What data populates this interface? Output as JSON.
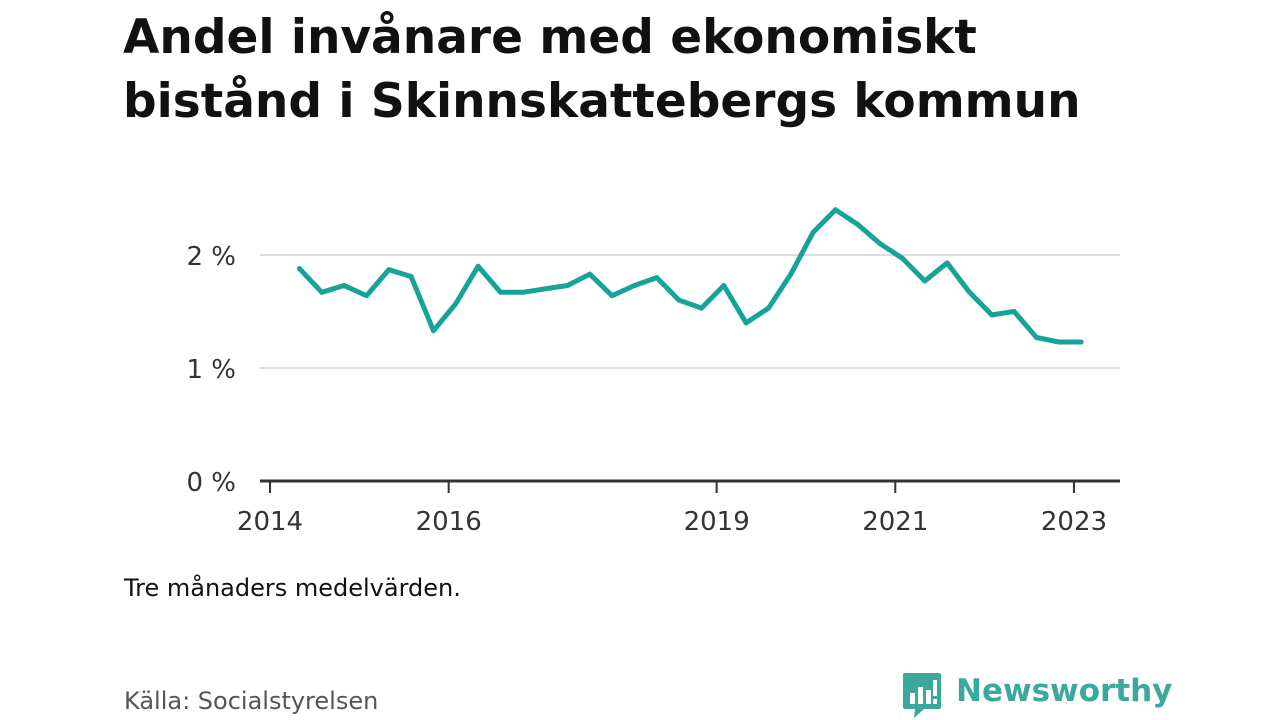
{
  "title_line1": "Andel invånare med ekonomiskt",
  "title_line2": "bistånd i Skinnskattebergs kommun",
  "note": "Tre månaders medelvärden.",
  "source": "Källa: Socialstyrelsen",
  "brand": {
    "name": "Newsworthy",
    "icon": "bar-chart-speech-bubble-icon",
    "color": "#3aa89c"
  },
  "colors": {
    "line": "#16a39a",
    "grid": "#dddddd",
    "axis": "#333333"
  },
  "chart_data": {
    "type": "line",
    "title": "Andel invånare med ekonomiskt bistånd i Skinnskattebergs kommun",
    "xlabel": "",
    "ylabel": "",
    "y_tick_values": [
      0,
      1,
      2
    ],
    "y_tick_labels": [
      "0 %",
      "1 %",
      "2 %"
    ],
    "x_tick_values": [
      2014,
      2016,
      2019,
      2021,
      2023
    ],
    "x_tick_labels": [
      "2014",
      "2016",
      "2019",
      "2021",
      "2023"
    ],
    "xlim": [
      2014,
      2023.5
    ],
    "ylim": [
      0,
      2.5
    ],
    "grid": true,
    "legend": "none",
    "series": [
      {
        "x": [
          2014.33,
          2014.58,
          2014.83,
          2015.08,
          2015.33,
          2015.58,
          2015.83,
          2016.08,
          2016.33,
          2016.58,
          2016.83,
          2017.08,
          2017.33,
          2017.58,
          2017.83,
          2018.08,
          2018.33,
          2018.58,
          2018.83,
          2019.08,
          2019.33,
          2019.58,
          2019.83,
          2020.08,
          2020.33,
          2020.58,
          2020.83,
          2021.08,
          2021.33,
          2021.58,
          2021.83,
          2022.08,
          2022.33,
          2022.58,
          2022.83,
          2023.08
        ],
        "values": [
          1.88,
          1.67,
          1.73,
          1.64,
          1.87,
          1.81,
          1.33,
          1.57,
          1.9,
          1.67,
          1.67,
          1.7,
          1.73,
          1.83,
          1.64,
          1.73,
          1.8,
          1.6,
          1.53,
          1.73,
          1.4,
          1.53,
          1.83,
          2.2,
          2.4,
          2.27,
          2.1,
          1.97,
          1.77,
          1.93,
          1.67,
          1.47,
          1.5,
          1.27,
          1.23,
          1.23
        ]
      }
    ]
  }
}
